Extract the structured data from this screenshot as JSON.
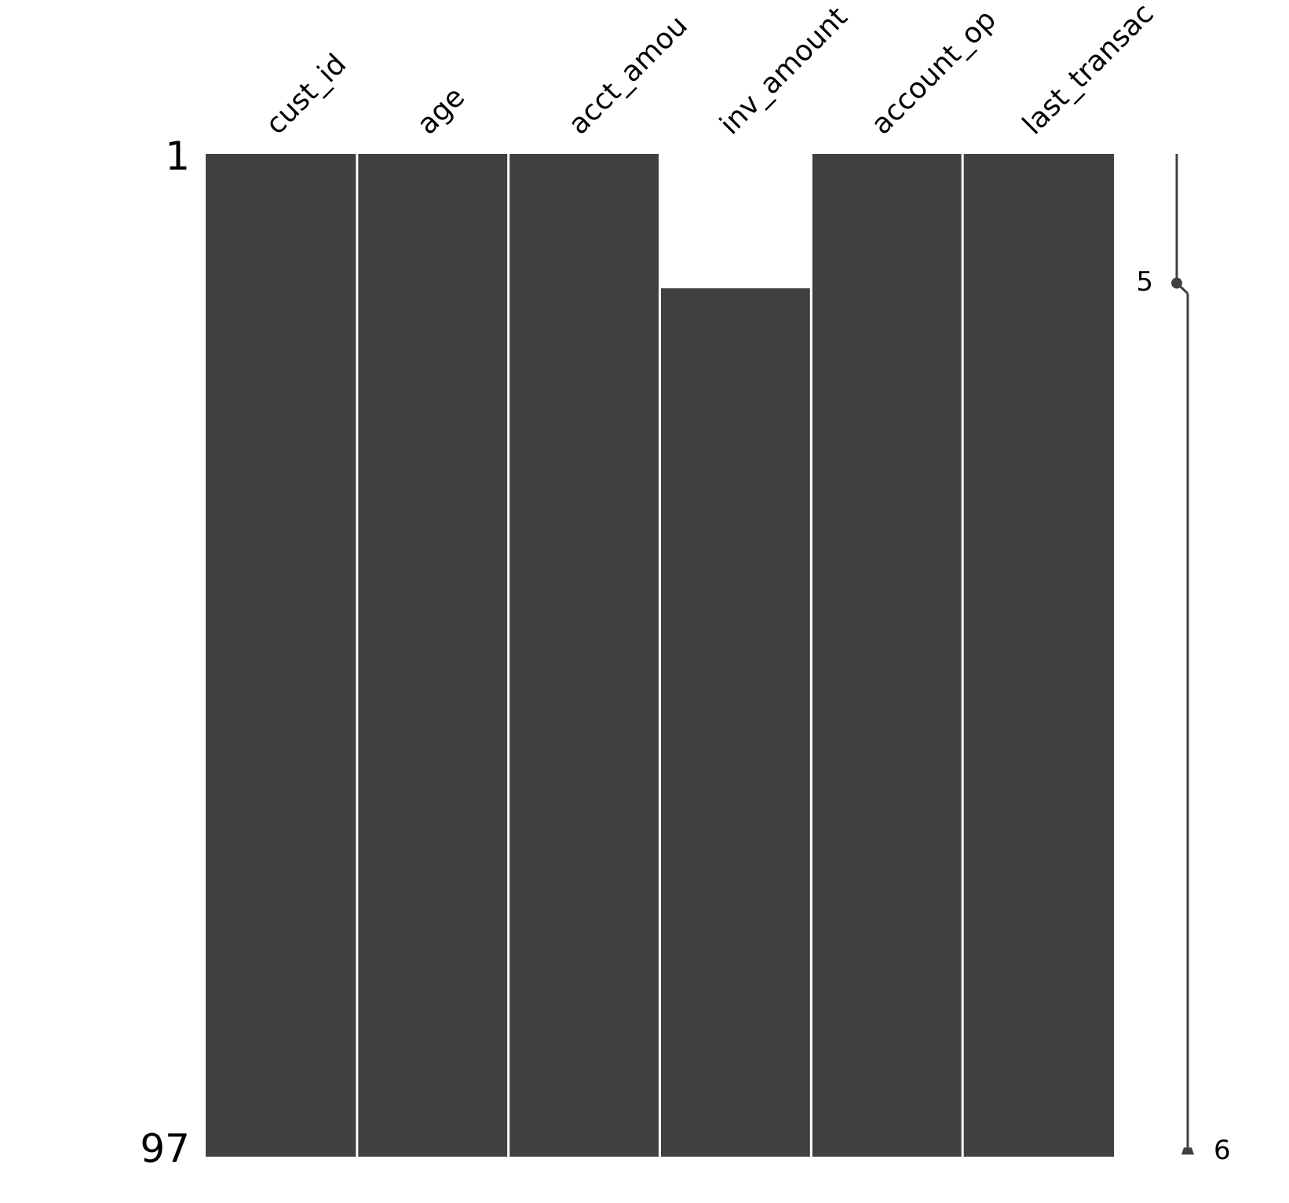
{
  "chart_data": {
    "type": "matrix",
    "columns": [
      {
        "name": "cust_id",
        "missing": []
      },
      {
        "name": "age",
        "missing": []
      },
      {
        "name": "acct_amou",
        "missing": []
      },
      {
        "name": "inv_amount",
        "missing": [
          [
            1,
            13
          ]
        ]
      },
      {
        "name": "account_op",
        "missing": []
      },
      {
        "name": "last_transac",
        "missing": []
      }
    ],
    "ylim": [
      1,
      97
    ],
    "yticks": [
      1,
      97
    ],
    "color": "#404040",
    "sparkline": {
      "xlim": [
        5,
        6
      ],
      "color": "#404040",
      "segments": [
        {
          "rows": [
            1,
            13
          ],
          "value": 5
        },
        {
          "rows": [
            14,
            97
          ],
          "value": 6
        }
      ]
    }
  }
}
